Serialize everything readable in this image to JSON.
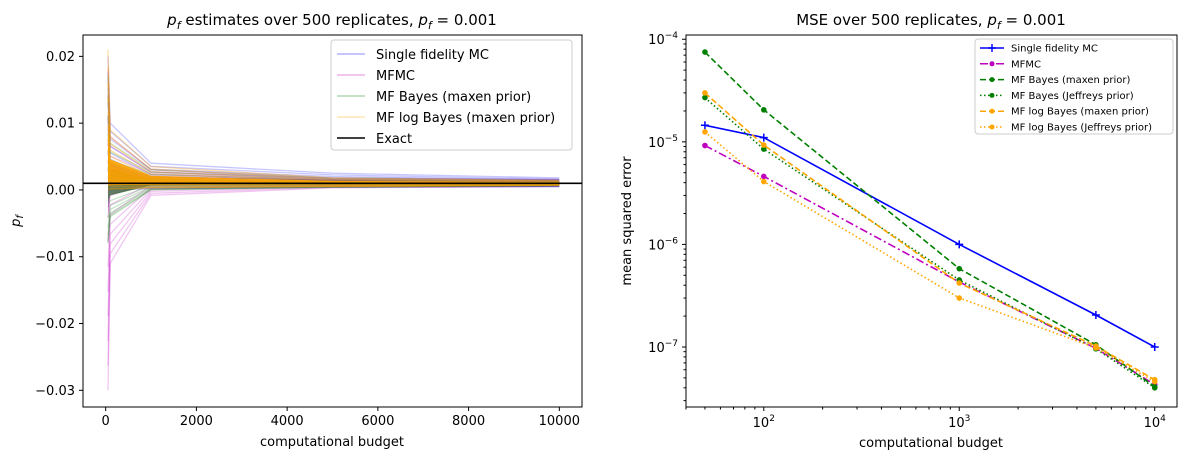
{
  "chart_data": [
    {
      "type": "line",
      "title": "p_f estimates over 500 replicates, p_f = 0.001",
      "title_parts": {
        "sym": "p",
        "sub": "f",
        "mid": " estimates over 500 replicates, ",
        "eq": " = 0.001"
      },
      "xlabel": "computational budget",
      "ylabel": "p_f",
      "ylabel_parts": {
        "sym": "p",
        "sub": "f"
      },
      "xlim": [
        -500,
        10500
      ],
      "ylim": [
        -0.0325,
        0.0232
      ],
      "xticks": [
        0,
        2000,
        4000,
        6000,
        8000,
        10000
      ],
      "yticks": [
        -0.03,
        -0.02,
        -0.01,
        0.0,
        0.01,
        0.02
      ],
      "ytick_labels": [
        "−0.03",
        "−0.02",
        "−0.01",
        "0.00",
        "0.01",
        "0.02"
      ],
      "legend_loc": "upper right",
      "x": [
        50,
        100,
        1000,
        5000,
        10000
      ],
      "exact": 0.001,
      "series": [
        {
          "name": "Single fidelity MC",
          "color": "#0000ff",
          "upper": [
            0.02,
            0.01,
            0.004,
            0.0025,
            0.0018
          ],
          "lower": [
            0.0,
            0.0,
            0.0002,
            0.0004,
            0.0005
          ]
        },
        {
          "name": "MFMC",
          "color": "#bf00bf",
          "upper": [
            0.018,
            0.008,
            0.003,
            0.0018,
            0.0016
          ],
          "lower": [
            -0.03,
            -0.011,
            -0.0008,
            0.0003,
            0.0005
          ]
        },
        {
          "name": "MF Bayes (maxen prior)",
          "color": "#008000",
          "upper": [
            0.017,
            0.007,
            0.003,
            0.0018,
            0.0015
          ],
          "lower": [
            -0.008,
            -0.004,
            0.0,
            0.0004,
            0.0006
          ]
        },
        {
          "name": "MF log Bayes (maxen prior)",
          "color": "#ffa500",
          "upper": [
            0.021,
            0.009,
            0.0035,
            0.0018,
            0.0014
          ],
          "lower": [
            0.0,
            0.0001,
            0.0003,
            0.0005,
            0.0007
          ]
        }
      ],
      "exact_label": "Exact"
    },
    {
      "type": "line",
      "title": "MSE over 500 replicates, p_f = 0.001",
      "title_parts": {
        "pre": "MSE over 500 replicates, ",
        "sym": "p",
        "sub": "f",
        "eq": " = 0.001"
      },
      "xlabel": "computational budget",
      "ylabel": "mean squared error",
      "xscale": "log",
      "yscale": "log",
      "xlim": [
        40,
        13000
      ],
      "ylim": [
        2.6e-08,
        0.00011
      ],
      "xticks": [
        100,
        1000,
        10000
      ],
      "xtick_labels": [
        {
          "base": "10",
          "exp": "2"
        },
        {
          "base": "10",
          "exp": "3"
        },
        {
          "base": "10",
          "exp": "4"
        }
      ],
      "yticks": [
        1e-07,
        1e-06,
        1e-05,
        0.0001
      ],
      "ytick_labels": [
        {
          "base": "10",
          "exp": "−7"
        },
        {
          "base": "10",
          "exp": "−6"
        },
        {
          "base": "10",
          "exp": "−5"
        },
        {
          "base": "10",
          "exp": "−4"
        }
      ],
      "legend_loc": "upper right",
      "x": [
        50,
        100,
        1000,
        5000,
        10000
      ],
      "series": [
        {
          "name": "Single fidelity MC",
          "color": "#0000ff",
          "dash": "solid",
          "marker": "plus",
          "values": [
            1.45e-05,
            1.1e-05,
            1e-06,
            2.05e-07,
            1e-07
          ]
        },
        {
          "name": "MFMC",
          "color": "#bf00bf",
          "dash": "dashdot",
          "marker": "dot",
          "values": [
            9.2e-06,
            4.6e-06,
            4.3e-07,
            9.7e-08,
            4.3e-08
          ]
        },
        {
          "name": "MF Bayes (maxen prior)",
          "color": "#008000",
          "dash": "dashed",
          "marker": "dot",
          "values": [
            7.5e-05,
            2.05e-05,
            5.8e-07,
            1.05e-07,
            4.1e-08
          ]
        },
        {
          "name": "MF Bayes (Jeffreys prior)",
          "color": "#008000",
          "dash": "dotted",
          "marker": "dot",
          "values": [
            2.7e-05,
            8.5e-06,
            4.5e-07,
            9.6e-08,
            4e-08
          ]
        },
        {
          "name": "MF log Bayes (maxen prior)",
          "color": "#ffa500",
          "dash": "dashed",
          "marker": "dot",
          "values": [
            3e-05,
            9.3e-06,
            4.2e-07,
            1.02e-07,
            4.8e-08
          ]
        },
        {
          "name": "MF log Bayes (Jeffreys prior)",
          "color": "#ffa500",
          "dash": "dotted",
          "marker": "dot",
          "values": [
            1.25e-05,
            4.1e-06,
            3e-07,
            9.8e-08,
            4.6e-08
          ]
        }
      ]
    }
  ]
}
